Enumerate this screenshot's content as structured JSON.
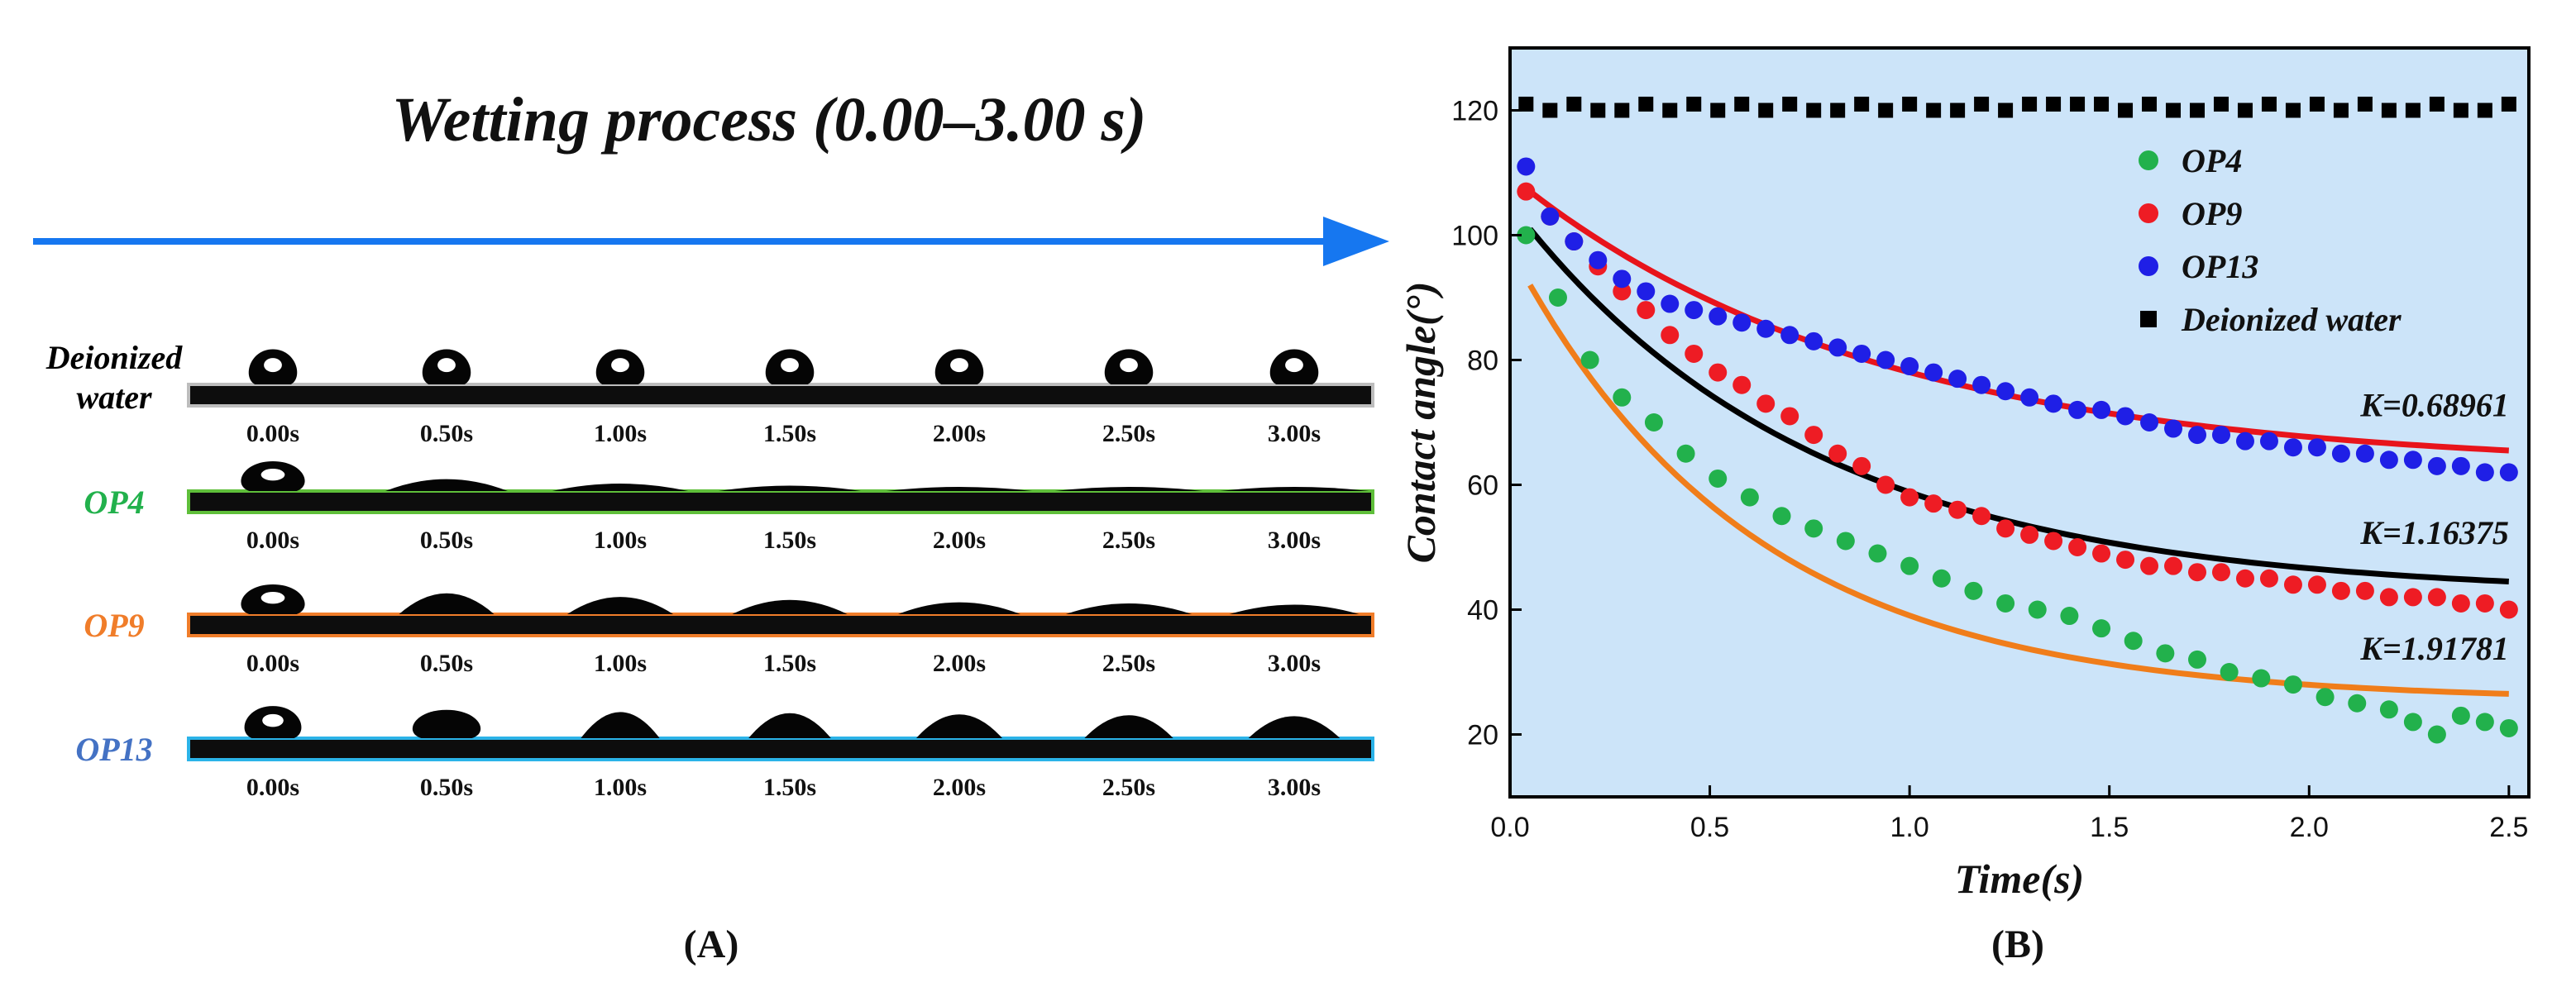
{
  "panel_a": {
    "title": "Wetting process (0.00–3.00 s)",
    "label": "(A)",
    "arrow_color": "#1677f0",
    "rows": [
      {
        "name_lines": [
          "Deionized",
          "water"
        ],
        "name_color": "#000000",
        "frame_color": "#bdbdbd",
        "contact_angles": [
          118,
          118,
          118,
          118,
          118,
          118,
          118
        ]
      },
      {
        "name_lines": [
          "OP4"
        ],
        "name_color": "#22b14c",
        "frame_color": "#5fbf3a",
        "contact_angles": [
          100,
          40,
          25,
          18,
          14,
          12,
          10
        ]
      },
      {
        "name_lines": [
          "OP9"
        ],
        "name_color": "#f07d2a",
        "frame_color": "#f07d2a",
        "contact_angles": [
          100,
          70,
          58,
          48,
          40,
          36,
          32
        ]
      },
      {
        "name_lines": [
          "OP13"
        ],
        "name_color": "#4472c4",
        "frame_color": "#2bb3e8",
        "contact_angles": [
          108,
          95,
          88,
          84,
          80,
          77,
          74
        ]
      }
    ],
    "times": [
      "0.00s",
      "0.50s",
      "1.00s",
      "1.50s",
      "2.00s",
      "2.50s",
      "3.00s"
    ]
  },
  "panel_b_label": "(B)",
  "chart_data": {
    "type": "scatter",
    "xlabel": "Time(s)",
    "ylabel": "Contact angle(°)",
    "xlim": [
      0.0,
      2.55
    ],
    "ylim": [
      10,
      130
    ],
    "xticks": [
      0.0,
      0.5,
      1.0,
      1.5,
      2.0,
      2.5
    ],
    "xtick_labels": [
      "0.0",
      "0.5",
      "1.0",
      "1.5",
      "2.0",
      "2.5"
    ],
    "yticks": [
      20,
      40,
      60,
      80,
      100,
      120
    ],
    "ytick_labels": [
      "20",
      "40",
      "60",
      "80",
      "100",
      "120"
    ],
    "background": "#cce4f9",
    "legend": {
      "placement": "top-right",
      "entries": [
        {
          "label": "OP4",
          "marker": "circle",
          "color": "#22b14c"
        },
        {
          "label": "OP9",
          "marker": "circle",
          "color": "#ee1c24"
        },
        {
          "label": "OP13",
          "marker": "circle",
          "color": "#1f1fe6"
        },
        {
          "label": "Deionized water",
          "marker": "square",
          "color": "#000000"
        }
      ]
    },
    "series": [
      {
        "name": "OP4",
        "marker": "circle",
        "color": "#22b14c",
        "x": [
          0.04,
          0.12,
          0.2,
          0.28,
          0.36,
          0.44,
          0.52,
          0.6,
          0.68,
          0.76,
          0.84,
          0.92,
          1.0,
          1.08,
          1.16,
          1.24,
          1.32,
          1.4,
          1.48,
          1.56,
          1.64,
          1.72,
          1.8,
          1.88,
          1.96,
          2.04,
          2.12,
          2.2,
          2.26,
          2.32,
          2.38,
          2.44,
          2.5
        ],
        "y": [
          100,
          90,
          80,
          74,
          70,
          65,
          61,
          58,
          55,
          53,
          51,
          49,
          47,
          45,
          43,
          41,
          40,
          39,
          37,
          35,
          33,
          32,
          30,
          29,
          28,
          26,
          25,
          24,
          22,
          20,
          23,
          22,
          21
        ]
      },
      {
        "name": "OP9",
        "marker": "circle",
        "color": "#ee1c24",
        "x": [
          0.04,
          0.1,
          0.16,
          0.22,
          0.28,
          0.34,
          0.4,
          0.46,
          0.52,
          0.58,
          0.64,
          0.7,
          0.76,
          0.82,
          0.88,
          0.94,
          1.0,
          1.06,
          1.12,
          1.18,
          1.24,
          1.3,
          1.36,
          1.42,
          1.48,
          1.54,
          1.6,
          1.66,
          1.72,
          1.78,
          1.84,
          1.9,
          1.96,
          2.02,
          2.08,
          2.14,
          2.2,
          2.26,
          2.32,
          2.38,
          2.44,
          2.5
        ],
        "y": [
          107,
          103,
          99,
          95,
          91,
          88,
          84,
          81,
          78,
          76,
          73,
          71,
          68,
          65,
          63,
          60,
          58,
          57,
          56,
          55,
          53,
          52,
          51,
          50,
          49,
          48,
          47,
          47,
          46,
          46,
          45,
          45,
          44,
          44,
          43,
          43,
          42,
          42,
          42,
          41,
          41,
          40
        ]
      },
      {
        "name": "OP13",
        "marker": "circle",
        "color": "#1f1fe6",
        "x": [
          0.04,
          0.1,
          0.16,
          0.22,
          0.28,
          0.34,
          0.4,
          0.46,
          0.52,
          0.58,
          0.64,
          0.7,
          0.76,
          0.82,
          0.88,
          0.94,
          1.0,
          1.06,
          1.12,
          1.18,
          1.24,
          1.3,
          1.36,
          1.42,
          1.48,
          1.54,
          1.6,
          1.66,
          1.72,
          1.78,
          1.84,
          1.9,
          1.96,
          2.02,
          2.08,
          2.14,
          2.2,
          2.26,
          2.32,
          2.38,
          2.44,
          2.5
        ],
        "y": [
          111,
          103,
          99,
          96,
          93,
          91,
          89,
          88,
          87,
          86,
          85,
          84,
          83,
          82,
          81,
          80,
          79,
          78,
          77,
          76,
          75,
          74,
          73,
          72,
          72,
          71,
          70,
          69,
          68,
          68,
          67,
          67,
          66,
          66,
          65,
          65,
          64,
          64,
          63,
          63,
          62,
          62
        ]
      },
      {
        "name": "Deionized water",
        "marker": "square",
        "color": "#000000",
        "x": [
          0.04,
          0.1,
          0.16,
          0.22,
          0.28,
          0.34,
          0.4,
          0.46,
          0.52,
          0.58,
          0.64,
          0.7,
          0.76,
          0.82,
          0.88,
          0.94,
          1.0,
          1.06,
          1.12,
          1.18,
          1.24,
          1.3,
          1.36,
          1.42,
          1.48,
          1.54,
          1.6,
          1.66,
          1.72,
          1.78,
          1.84,
          1.9,
          1.96,
          2.02,
          2.08,
          2.14,
          2.2,
          2.26,
          2.32,
          2.38,
          2.44,
          2.5
        ],
        "y": [
          121,
          120,
          121,
          120,
          120,
          121,
          120,
          121,
          120,
          121,
          120,
          121,
          120,
          120,
          121,
          120,
          121,
          120,
          120,
          121,
          120,
          121,
          121,
          121,
          121,
          120,
          121,
          120,
          120,
          121,
          120,
          121,
          120,
          121,
          120,
          121,
          120,
          120,
          121,
          120,
          120,
          121
        ]
      }
    ],
    "fit_curves": [
      {
        "name": "K=0.68961",
        "color": "#e8141b",
        "start": 107,
        "end": 65.5,
        "x0": 0.05,
        "x1": 2.5,
        "tau": 0.9
      },
      {
        "name": "K=1.16375",
        "color": "#000000",
        "start": 101,
        "end": 44.5,
        "x0": 0.05,
        "x1": 2.5,
        "tau": 0.75
      },
      {
        "name": "K=1.91781",
        "color": "#f07d1a",
        "start": 92,
        "end": 26.5,
        "x0": 0.05,
        "x1": 2.5,
        "tau": 0.6
      }
    ],
    "annotations": [
      {
        "text": "K=0.68961",
        "x": 2.5,
        "y": 71
      },
      {
        "text": "K=1.16375",
        "x": 2.5,
        "y": 50.5
      },
      {
        "text": "K=1.91781",
        "x": 2.5,
        "y": 32
      }
    ]
  }
}
